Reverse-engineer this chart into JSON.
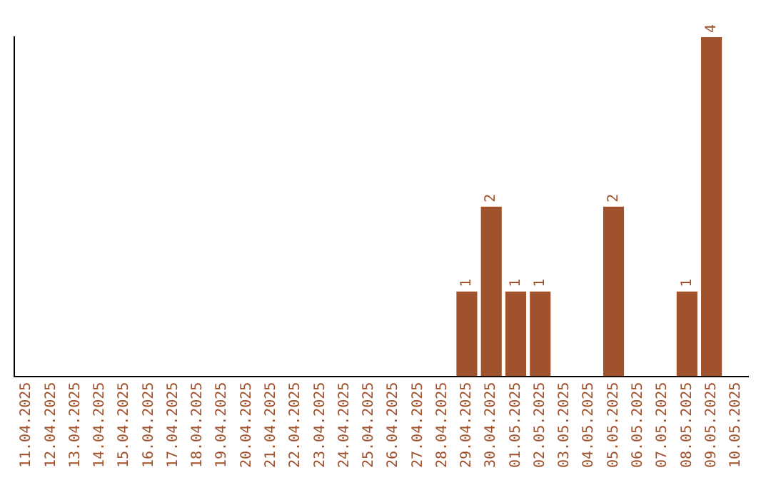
{
  "chart_data": {
    "type": "bar",
    "categories": [
      "11.04.2025",
      "12.04.2025",
      "13.04.2025",
      "14.04.2025",
      "15.04.2025",
      "16.04.2025",
      "17.04.2025",
      "18.04.2025",
      "19.04.2025",
      "20.04.2025",
      "21.04.2025",
      "22.04.2025",
      "23.04.2025",
      "24.04.2025",
      "25.04.2025",
      "26.04.2025",
      "27.04.2025",
      "28.04.2025",
      "29.04.2025",
      "30.04.2025",
      "01.05.2025",
      "02.05.2025",
      "03.05.2025",
      "04.05.2025",
      "05.05.2025",
      "06.05.2025",
      "07.05.2025",
      "08.05.2025",
      "09.05.2025",
      "10.05.2025"
    ],
    "values": [
      null,
      null,
      null,
      null,
      null,
      null,
      null,
      null,
      null,
      null,
      null,
      null,
      null,
      null,
      null,
      null,
      null,
      null,
      1,
      2,
      1,
      1,
      null,
      null,
      2,
      null,
      null,
      1,
      4,
      null
    ],
    "data_labels": true,
    "color": "#a0522d",
    "grid": false,
    "legend": false,
    "tick_labels": "x"
  }
}
